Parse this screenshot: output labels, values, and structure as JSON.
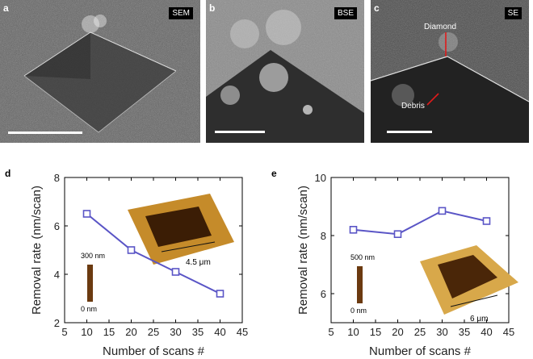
{
  "panels": {
    "a": {
      "letter": "a",
      "tag": "SEM"
    },
    "b": {
      "letter": "b",
      "tag": "BSE"
    },
    "c": {
      "letter": "c",
      "tag": "SE",
      "annotation_diamond": "Diamond",
      "annotation_debris": "Debris"
    }
  },
  "chart_data": [
    {
      "panel": "d",
      "type": "line",
      "x": [
        10,
        20,
        30,
        40
      ],
      "series": [
        {
          "values": [
            6.5,
            5.0,
            4.1,
            3.2
          ]
        }
      ],
      "xlabel": "Number of scans #",
      "ylabel": "Removal rate (nm/scan)",
      "xlim": [
        5,
        45
      ],
      "ylim": [
        2,
        8
      ],
      "xticks": [
        5,
        10,
        15,
        20,
        25,
        30,
        35,
        40,
        45
      ],
      "yticks": [
        2,
        4,
        6,
        8
      ],
      "color": "#5a55c6",
      "inset": {
        "colorbar_top": "300 nm",
        "colorbar_bottom": "0 nm",
        "scale": "4.5  μm"
      }
    },
    {
      "panel": "e",
      "type": "line",
      "x": [
        10,
        20,
        30,
        40
      ],
      "series": [
        {
          "values": [
            8.2,
            8.05,
            8.85,
            8.5
          ]
        }
      ],
      "xlabel": "Number of scans #",
      "ylabel": "Removal rate (nm/scan)",
      "xlim": [
        5,
        45
      ],
      "ylim": [
        5,
        10
      ],
      "xticks": [
        5,
        10,
        15,
        20,
        25,
        30,
        35,
        40,
        45
      ],
      "yticks": [
        6,
        8,
        10
      ],
      "color": "#5a55c6",
      "inset": {
        "colorbar_top": "500 nm",
        "colorbar_bottom": "0 nm",
        "scale": "6 μm"
      }
    }
  ]
}
